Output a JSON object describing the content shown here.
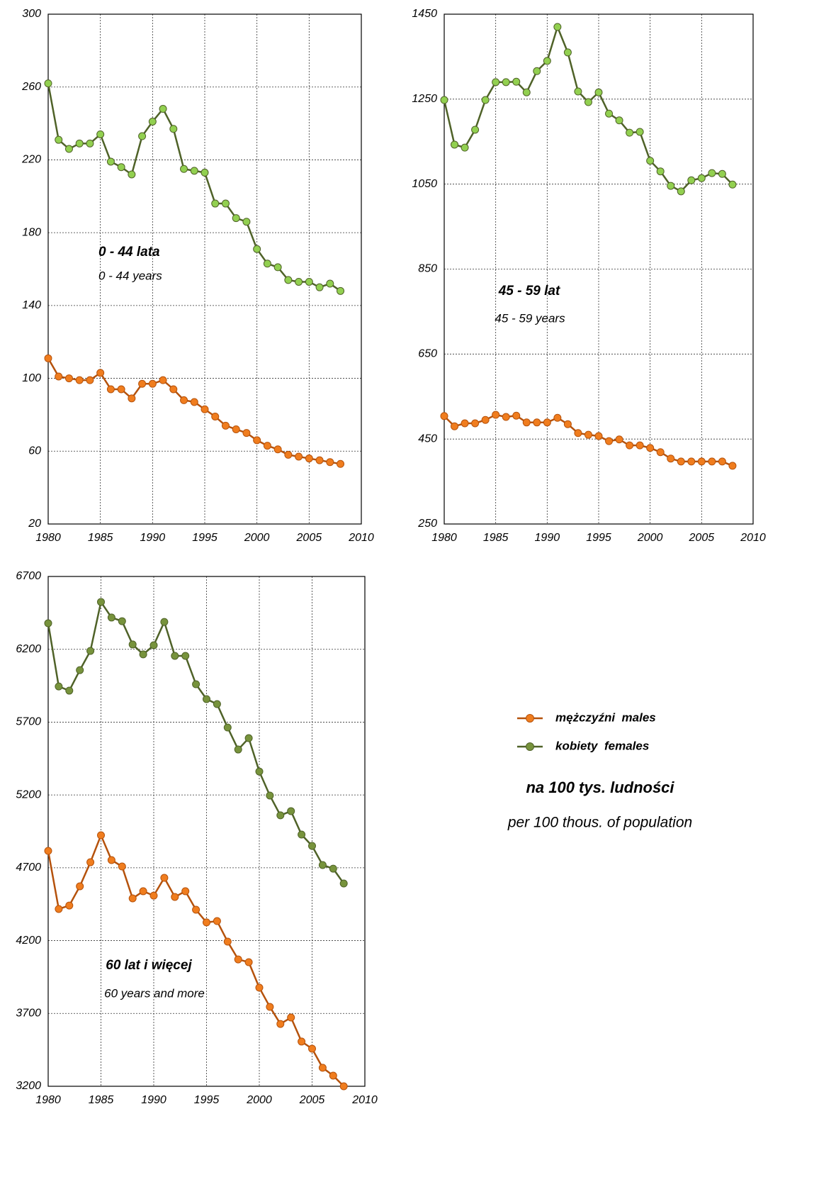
{
  "chart_data": [
    {
      "type": "line",
      "annotations": [
        "0 - 44 lata",
        "0 - 44 years"
      ],
      "x": [
        1980,
        1981,
        1982,
        1983,
        1984,
        1985,
        1986,
        1987,
        1988,
        1989,
        1990,
        1991,
        1992,
        1993,
        1994,
        1995,
        1996,
        1997,
        1998,
        1999,
        2000,
        2001,
        2002,
        2003,
        2004,
        2005,
        2006,
        2007,
        2008
      ],
      "series": [
        {
          "name": "mężczyźni  males",
          "color": "#b5520c",
          "marker_color": "#f07d1e",
          "values": [
            111,
            101,
            100,
            99,
            99,
            103,
            94,
            94,
            89,
            97,
            97,
            99,
            94,
            88,
            87,
            83,
            79,
            74,
            72,
            70,
            66,
            63,
            61,
            58,
            57,
            56,
            55,
            54,
            53
          ]
        },
        {
          "name": "kobiety  females",
          "color": "#4f6228",
          "marker_color": "#92d050",
          "values": [
            262,
            231,
            226,
            229,
            229,
            234,
            219,
            216,
            212,
            233,
            241,
            248,
            237,
            215,
            214,
            213,
            196,
            196,
            188,
            186,
            171,
            163,
            161,
            154,
            153,
            153,
            150,
            152,
            148
          ]
        }
      ],
      "xlim": [
        1980,
        2010
      ],
      "xticks": [
        1980,
        1985,
        1990,
        1995,
        2000,
        2005,
        2010
      ],
      "ylim": [
        20,
        300
      ],
      "yticks": [
        20,
        60,
        100,
        140,
        180,
        220,
        260,
        300
      ],
      "grid": true
    },
    {
      "type": "line",
      "annotations": [
        "45 - 59 lat",
        "45 - 59 years"
      ],
      "x": [
        1980,
        1981,
        1982,
        1983,
        1984,
        1985,
        1986,
        1987,
        1988,
        1989,
        1990,
        1991,
        1992,
        1993,
        1994,
        1995,
        1996,
        1997,
        1998,
        1999,
        2000,
        2001,
        2002,
        2003,
        2004,
        2005,
        2006,
        2007,
        2008
      ],
      "series": [
        {
          "name": "mężczyźni  males",
          "color": "#b5520c",
          "marker_color": "#f07d1e",
          "values": [
            504,
            480,
            487,
            487,
            495,
            507,
            502,
            505,
            489,
            489,
            489,
            500,
            485,
            464,
            460,
            457,
            445,
            449,
            435,
            435,
            429,
            419,
            404,
            397,
            397,
            397,
            397,
            397,
            387
          ]
        },
        {
          "name": "kobiety  females",
          "color": "#4f6228",
          "marker_color": "#92d050",
          "values": [
            1248,
            1143,
            1136,
            1178,
            1248,
            1290,
            1290,
            1291,
            1266,
            1316,
            1340,
            1420,
            1360,
            1268,
            1243,
            1266,
            1216,
            1200,
            1171,
            1173,
            1105,
            1080,
            1046,
            1033,
            1059,
            1064,
            1076,
            1074,
            1049
          ]
        }
      ],
      "xlim": [
        1980,
        2010
      ],
      "xticks": [
        1980,
        1985,
        1990,
        1995,
        2000,
        2005,
        2010
      ],
      "ylim": [
        250,
        1450
      ],
      "yticks": [
        250,
        450,
        650,
        850,
        1050,
        1250,
        1450
      ],
      "grid": true
    },
    {
      "type": "line",
      "annotations": [
        "60 lat i więcej",
        "60 years and more"
      ],
      "x": [
        1980,
        1981,
        1982,
        1983,
        1984,
        1985,
        1986,
        1987,
        1988,
        1989,
        1990,
        1991,
        1992,
        1993,
        1994,
        1995,
        1996,
        1997,
        1998,
        1999,
        2000,
        2001,
        2002,
        2003,
        2004,
        2005,
        2006,
        2007,
        2008
      ],
      "series": [
        {
          "name": "mężczyźni  males",
          "color": "#b5520c",
          "marker_color": "#f07d1e",
          "values": [
            4816,
            4417,
            4441,
            4573,
            4738,
            4923,
            4753,
            4709,
            4490,
            4539,
            4509,
            4631,
            4500,
            4539,
            4412,
            4325,
            4334,
            4193,
            4071,
            4052,
            3877,
            3745,
            3628,
            3672,
            3507,
            3458,
            3327,
            3273,
            3200
          ]
        },
        {
          "name": "kobiety  females",
          "color": "#4f6228",
          "marker_color": "#77933c",
          "values": [
            6379,
            5945,
            5916,
            6057,
            6189,
            6525,
            6418,
            6393,
            6233,
            6165,
            6228,
            6388,
            6155,
            6155,
            5960,
            5858,
            5824,
            5663,
            5512,
            5590,
            5361,
            5196,
            5060,
            5089,
            4928,
            4850,
            4719,
            4694,
            4592
          ]
        }
      ],
      "xlim": [
        1980,
        2010
      ],
      "xticks": [
        1980,
        1985,
        1990,
        1995,
        2000,
        2005,
        2010
      ],
      "ylim": [
        3200,
        6700
      ],
      "yticks": [
        3200,
        3700,
        4200,
        4700,
        5200,
        5700,
        6200,
        6700
      ],
      "grid": true
    }
  ],
  "unit_note": [
    "na 100 tys. ludności",
    "per 100 thous. of population"
  ]
}
